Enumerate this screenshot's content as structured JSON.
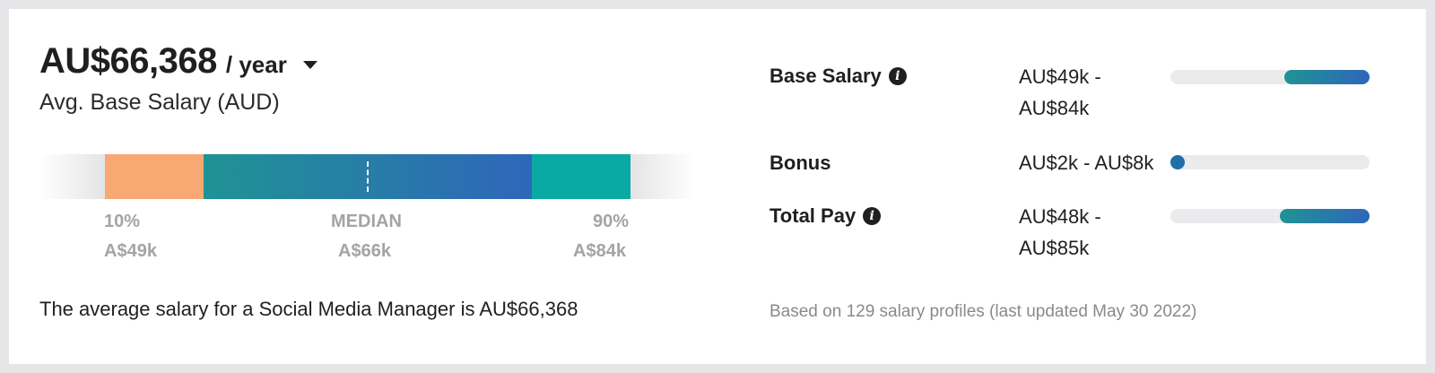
{
  "header": {
    "salary": "AU$66,368",
    "period": "/ year",
    "avg_label": "Avg. Base Salary (AUD)"
  },
  "distribution": {
    "p10_label": "10%",
    "p10_value": "A$49k",
    "median_label": "MEDIAN",
    "median_value": "A$66k",
    "p90_label": "90%",
    "p90_value": "A$84k",
    "colors": {
      "low": "#f7a873",
      "mid_start": "#1f9394",
      "mid_end": "#2f66ba",
      "high": "#0aa9a4"
    }
  },
  "description": "The average salary for a Social Media Manager is AU$66,368",
  "pay_breakdown": [
    {
      "label": "Base Salary",
      "has_info": true,
      "range_line1": "AU$49k -",
      "range_line2": "AU$84k",
      "bar_start": 0.57,
      "bar_end": 1.0
    },
    {
      "label": "Bonus",
      "has_info": false,
      "range_line1": "AU$2k - AU$8k",
      "range_line2": "",
      "bar_start": 0.0,
      "bar_end": 0.0
    },
    {
      "label": "Total Pay",
      "has_info": true,
      "range_line1": "AU$48k -",
      "range_line2": "AU$85k",
      "bar_start": 0.55,
      "bar_end": 1.0
    }
  ],
  "info_icon_glyph": "i",
  "footnote": "Based on 129 salary profiles (last updated May 30 2022)"
}
